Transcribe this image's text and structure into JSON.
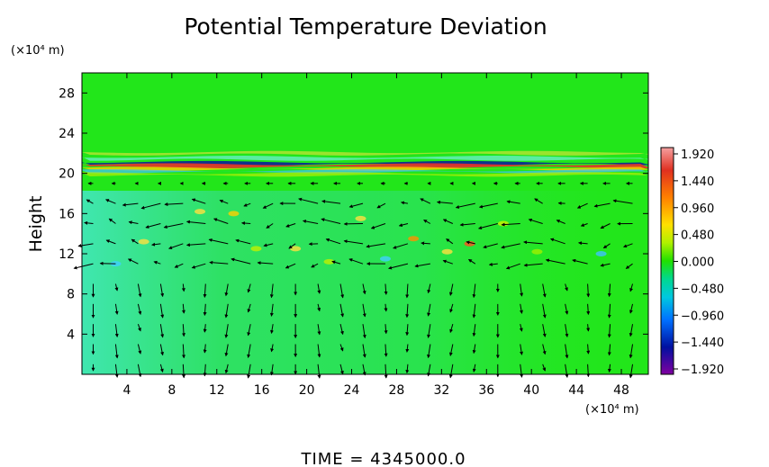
{
  "chart_data": {
    "type": "heatmap",
    "title": "Potential Temperature Deviation",
    "ylabel": "Height",
    "x_unit_label": "(×10⁴ m)",
    "y_unit_label": "(×10⁴ m)",
    "x_ticks": [
      4,
      8,
      12,
      16,
      20,
      24,
      28,
      32,
      36,
      40,
      44,
      48
    ],
    "y_ticks": [
      4,
      8,
      12,
      16,
      20,
      24,
      28
    ],
    "x_range": [
      0,
      50.4
    ],
    "y_range": [
      0,
      30
    ],
    "colorbar": {
      "ticks": [
        "1.920",
        "1.440",
        "0.960",
        "0.480",
        "0.000",
        "−0.480",
        "−0.960",
        "−1.440",
        "−1.920"
      ],
      "range": [
        -1.92,
        1.92
      ],
      "colors": [
        "#f08080",
        "#e03020",
        "#ff9000",
        "#ffe000",
        "#20e000",
        "#00d070",
        "#00c8e0",
        "#0060ff",
        "#000090",
        "#7000a0"
      ]
    },
    "field_colors": {
      "background": "#22e61a",
      "upper_band_warm": "#e8302a",
      "upper_band_cool": "#0a1e9a",
      "lower_region": "#3ce6a0"
    },
    "vector_field": {
      "description_color": "#000000",
      "rows_y": [
        1,
        3,
        5,
        7,
        9,
        11,
        13,
        15,
        17,
        19
      ],
      "columns_x": [
        1,
        3,
        5,
        7,
        9,
        11,
        13,
        15,
        17,
        19,
        21,
        23,
        25,
        27,
        29,
        31,
        33,
        35,
        37,
        39,
        41,
        43,
        45,
        47,
        49
      ]
    }
  },
  "footer": {
    "time_label": "TIME  =  4345000.0"
  }
}
